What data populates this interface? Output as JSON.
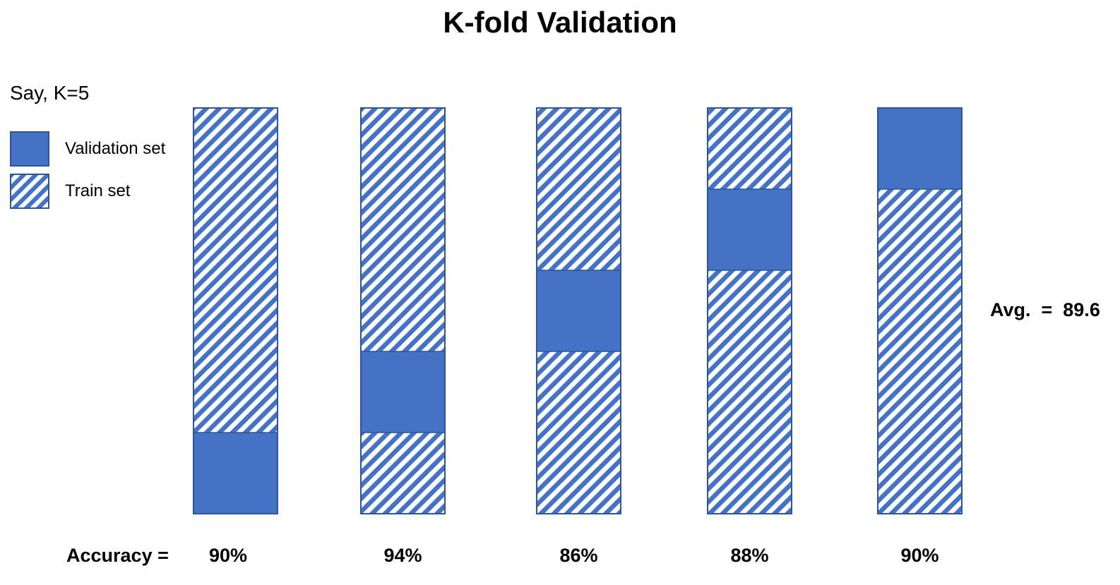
{
  "title": "K-fold Validation",
  "k_label": "Say, K=5",
  "legend": {
    "validation": "Validation set",
    "train": "Train set"
  },
  "colors": {
    "validation": "#4472c4",
    "stripe": "#4472c4",
    "border": "#2e5599"
  },
  "folds": [
    {
      "validation_index": 4,
      "accuracy": "90%"
    },
    {
      "validation_index": 3,
      "accuracy": "94%"
    },
    {
      "validation_index": 2,
      "accuracy": "86%"
    },
    {
      "validation_index": 1,
      "accuracy": "88%"
    },
    {
      "validation_index": 0,
      "accuracy": "90%"
    }
  ],
  "segments_per_fold": 5,
  "accuracy_label": "Accuracy =",
  "average": "Avg.  =  89.6"
}
